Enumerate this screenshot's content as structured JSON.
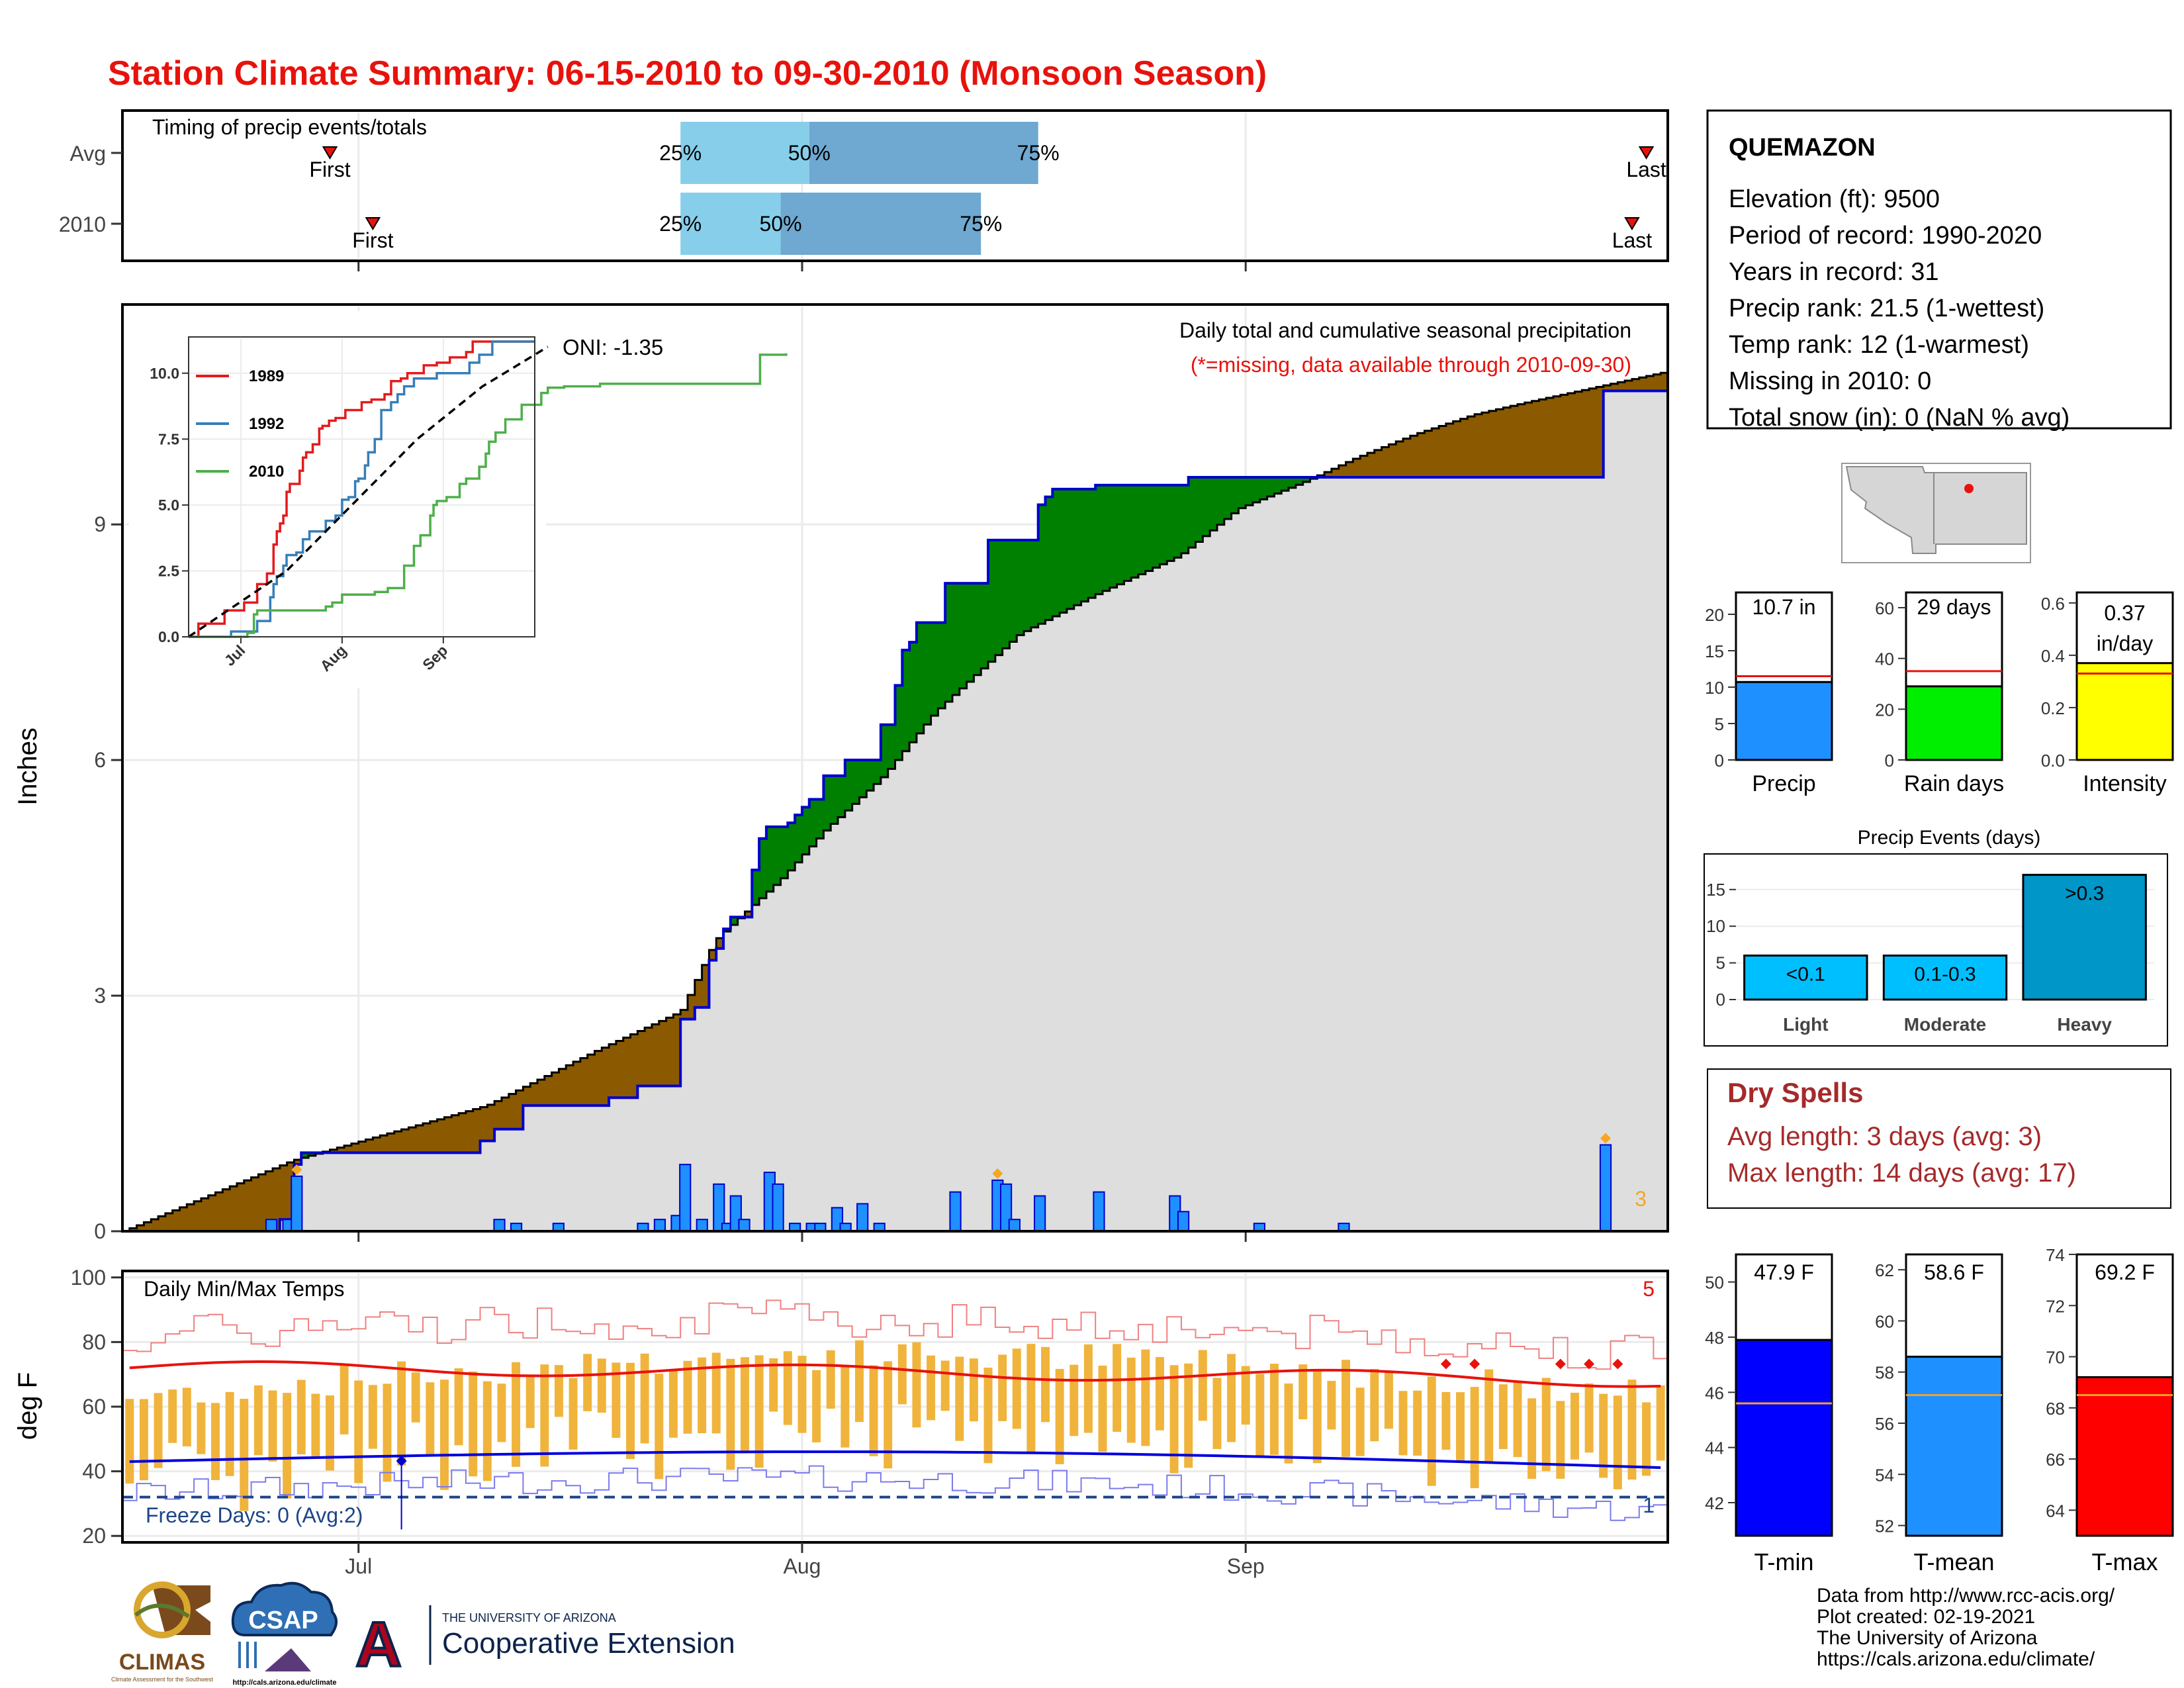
{
  "title": "Station Climate Summary: 06-15-2010 to 09-30-2010 (Monsoon Season)",
  "timing": {
    "label": "Timing of precip events/totals",
    "rows": [
      {
        "label": "Avg",
        "first_label": "First",
        "last_label": "Last",
        "first": "2010-06-29",
        "last": "2010-09-29",
        "p25": "2010-07-24",
        "p50": "2010-08-02",
        "p75": "2010-08-18"
      },
      {
        "label": "2010",
        "first_label": "First",
        "last_label": "Last",
        "first": "2010-07-02",
        "last": "2010-09-28",
        "p25": "2010-07-24",
        "p50": "2010-07-31",
        "p75": "2010-08-14"
      }
    ],
    "pct_labels": [
      "25%",
      "50%",
      "75%"
    ]
  },
  "main": {
    "ylabel": "Inches",
    "yticks": [
      0,
      3,
      6,
      9
    ],
    "ylim": [
      0,
      11.8
    ],
    "xticks": [
      "Jul",
      "Aug",
      "Sep"
    ],
    "oni": "ONI: -1.35",
    "caption": "Daily total and cumulative seasonal precipitation",
    "missing_note": "(*=missing, data available through 2010-09-30)",
    "corner_count": "3"
  },
  "chart_data": [
    {
      "type": "area",
      "name": "cumulative",
      "start_date": "2010-06-15",
      "observed_cum": [
        [
          0,
          0
        ],
        [
          17,
          0
        ],
        [
          18,
          0.15
        ],
        [
          19,
          0.15
        ],
        [
          20,
          0.85
        ],
        [
          21,
          1.0
        ],
        [
          41,
          1.0
        ],
        [
          42,
          1.15
        ],
        [
          43,
          1.15
        ],
        [
          44,
          1.3
        ],
        [
          46,
          1.3
        ],
        [
          47,
          1.6
        ],
        [
          56,
          1.6
        ],
        [
          57,
          1.7
        ],
        [
          60,
          1.7
        ],
        [
          61,
          1.85
        ],
        [
          65,
          1.85
        ],
        [
          66,
          2.7
        ],
        [
          67,
          2.85
        ],
        [
          68,
          2.85
        ],
        [
          69,
          3.45
        ],
        [
          70,
          3.6
        ],
        [
          71,
          3.85
        ],
        [
          72,
          4.0
        ],
        [
          73,
          4.0
        ],
        [
          74,
          4.6
        ],
        [
          75,
          5.0
        ],
        [
          76,
          5.15
        ],
        [
          77,
          5.15
        ],
        [
          78,
          5.2
        ],
        [
          79,
          5.3
        ],
        [
          80,
          5.4
        ],
        [
          81,
          5.5
        ],
        [
          82,
          5.5
        ],
        [
          83,
          5.8
        ],
        [
          84,
          5.8
        ],
        [
          85,
          6.0
        ],
        [
          88,
          6.0
        ],
        [
          89,
          6.45
        ],
        [
          90,
          6.45
        ],
        [
          91,
          6.95
        ],
        [
          92,
          7.4
        ],
        [
          93,
          7.5
        ],
        [
          94,
          7.75
        ],
        [
          96,
          7.75
        ],
        [
          97,
          8.25
        ],
        [
          101,
          8.25
        ],
        [
          102,
          8.8
        ],
        [
          107,
          8.8
        ],
        [
          108,
          9.25
        ],
        [
          109,
          9.35
        ],
        [
          110,
          9.45
        ],
        [
          114,
          9.45
        ],
        [
          115,
          9.5
        ],
        [
          125,
          9.5
        ],
        [
          126,
          9.6
        ],
        [
          174,
          9.6
        ],
        [
          175,
          10.7
        ],
        [
          182,
          10.7
        ],
        [
          183,
          10.75
        ]
      ],
      "avg_cum": [
        [
          0,
          0
        ],
        [
          20,
          0.9
        ],
        [
          43,
          1.6
        ],
        [
          56,
          2.3
        ],
        [
          66,
          2.8
        ],
        [
          70,
          3.7
        ],
        [
          78,
          4.5
        ],
        [
          83,
          5.1
        ],
        [
          90,
          5.8
        ],
        [
          96,
          6.6
        ],
        [
          101,
          7.1
        ],
        [
          106,
          7.6
        ],
        [
          115,
          8.1
        ],
        [
          125,
          8.6
        ],
        [
          132,
          9.2
        ],
        [
          140,
          9.55
        ],
        [
          146,
          9.85
        ],
        [
          153,
          10.15
        ],
        [
          160,
          10.4
        ],
        [
          166,
          10.55
        ],
        [
          183,
          10.95
        ]
      ],
      "daily_precip": [
        [
          17,
          0.15
        ],
        [
          19,
          0.15
        ],
        [
          20,
          0.7
        ],
        [
          44,
          0.15
        ],
        [
          46,
          0.1
        ],
        [
          51,
          0.1
        ],
        [
          61,
          0.1
        ],
        [
          63,
          0.15
        ],
        [
          65,
          0.2
        ],
        [
          66,
          0.85
        ],
        [
          68,
          0.15
        ],
        [
          70,
          0.6
        ],
        [
          71,
          0.1
        ],
        [
          72,
          0.45
        ],
        [
          73,
          0.15
        ],
        [
          76,
          0.75
        ],
        [
          77,
          0.6
        ],
        [
          79,
          0.1
        ],
        [
          81,
          0.1
        ],
        [
          82,
          0.1
        ],
        [
          84,
          0.3
        ],
        [
          85,
          0.1
        ],
        [
          87,
          0.35
        ],
        [
          89,
          0.1
        ],
        [
          98,
          0.5
        ],
        [
          103,
          0.65
        ],
        [
          104,
          0.6
        ],
        [
          105,
          0.15
        ],
        [
          108,
          0.45
        ],
        [
          115,
          0.5
        ],
        [
          124,
          0.45
        ],
        [
          125,
          0.25
        ],
        [
          134,
          0.1
        ],
        [
          144,
          0.1
        ],
        [
          175,
          1.1
        ]
      ]
    },
    {
      "type": "line",
      "name": "inset",
      "series": [
        {
          "name": "1989",
          "color": "#e41a1c",
          "points": [
            [
              0,
              0
            ],
            [
              3,
              0.5
            ],
            [
              10,
              0.5
            ],
            [
              11,
              1.0
            ],
            [
              16,
              1.0
            ],
            [
              17,
              1.3
            ],
            [
              20,
              1.3
            ],
            [
              21,
              2.0
            ],
            [
              23,
              2.0
            ],
            [
              24,
              2.4
            ],
            [
              25,
              2.4
            ],
            [
              26,
              3.5
            ],
            [
              27,
              4.0
            ],
            [
              28,
              4.3
            ],
            [
              29,
              4.6
            ],
            [
              30,
              5.5
            ],
            [
              31,
              5.8
            ],
            [
              33,
              5.8
            ],
            [
              34,
              6.3
            ],
            [
              35,
              6.8
            ],
            [
              36,
              7.0
            ],
            [
              38,
              7.3
            ],
            [
              40,
              7.9
            ],
            [
              41,
              8.0
            ],
            [
              43,
              8.2
            ],
            [
              45,
              8.3
            ],
            [
              48,
              8.6
            ],
            [
              52,
              8.6
            ],
            [
              53,
              8.9
            ],
            [
              56,
              9.0
            ],
            [
              60,
              9.2
            ],
            [
              62,
              9.7
            ],
            [
              65,
              9.8
            ],
            [
              67,
              10.0
            ],
            [
              70,
              10.0
            ],
            [
              72,
              10.3
            ],
            [
              76,
              10.4
            ],
            [
              80,
              10.6
            ],
            [
              85,
              10.8
            ],
            [
              87,
              11.2
            ],
            [
              93,
              11.2
            ],
            [
              95,
              11.2
            ],
            [
              106,
              11.2
            ]
          ]
        },
        {
          "name": "1992",
          "color": "#377eb8",
          "points": [
            [
              0,
              0
            ],
            [
              12,
              0
            ],
            [
              13,
              0.2
            ],
            [
              20,
              0.2
            ],
            [
              21,
              0.6
            ],
            [
              24,
              0.6
            ],
            [
              25,
              1.5
            ],
            [
              26,
              2.0
            ],
            [
              27,
              2.3
            ],
            [
              29,
              2.7
            ],
            [
              30,
              3.1
            ],
            [
              33,
              3.2
            ],
            [
              35,
              3.7
            ],
            [
              37,
              4.0
            ],
            [
              40,
              4.0
            ],
            [
              42,
              4.4
            ],
            [
              45,
              4.6
            ],
            [
              47,
              5.2
            ],
            [
              49,
              5.3
            ],
            [
              51,
              5.9
            ],
            [
              52,
              6.0
            ],
            [
              54,
              6.5
            ],
            [
              55,
              7.0
            ],
            [
              57,
              7.5
            ],
            [
              59,
              8.6
            ],
            [
              62,
              8.9
            ],
            [
              64,
              9.2
            ],
            [
              66,
              9.5
            ],
            [
              69,
              9.8
            ],
            [
              75,
              9.8
            ],
            [
              76,
              10.0
            ],
            [
              84,
              10.0
            ],
            [
              86,
              10.4
            ],
            [
              89,
              10.7
            ],
            [
              93,
              11.2
            ],
            [
              106,
              11.2
            ]
          ]
        },
        {
          "name": "2010",
          "color": "#4daf4a",
          "points": [
            [
              0,
              0
            ],
            [
              17,
              0
            ],
            [
              18,
              0.15
            ],
            [
              20,
              0.85
            ],
            [
              21,
              1.0
            ],
            [
              41,
              1.0
            ],
            [
              42,
              1.15
            ],
            [
              44,
              1.3
            ],
            [
              47,
              1.6
            ],
            [
              56,
              1.6
            ],
            [
              57,
              1.7
            ],
            [
              61,
              1.85
            ],
            [
              66,
              2.7
            ],
            [
              69,
              3.45
            ],
            [
              71,
              3.85
            ],
            [
              74,
              4.6
            ],
            [
              75,
              5.0
            ],
            [
              76,
              5.15
            ],
            [
              79,
              5.3
            ],
            [
              83,
              5.8
            ],
            [
              85,
              6.0
            ],
            [
              89,
              6.45
            ],
            [
              91,
              6.95
            ],
            [
              92,
              7.4
            ],
            [
              94,
              7.75
            ],
            [
              97,
              8.25
            ],
            [
              102,
              8.8
            ],
            [
              108,
              9.25
            ],
            [
              110,
              9.45
            ],
            [
              115,
              9.5
            ],
            [
              126,
              9.6
            ],
            [
              175,
              10.7
            ],
            [
              183,
              10.75
            ]
          ]
        }
      ],
      "avg_points": [
        [
          0,
          0
        ],
        [
          30,
          2.5
        ],
        [
          50,
          5
        ],
        [
          70,
          7.5
        ],
        [
          90,
          9.5
        ],
        [
          110,
          11
        ]
      ],
      "yticks": [
        0.0,
        2.5,
        5.0,
        7.5,
        10.0
      ],
      "xticks": [
        "Jul",
        "Aug",
        "Sep"
      ]
    },
    {
      "type": "line",
      "name": "temperature",
      "title": "Daily Min/Max Temps",
      "ylabel": "deg F",
      "yticks": [
        20,
        40,
        60,
        80,
        100
      ],
      "ylim": [
        18,
        102
      ],
      "freeze_line": 32,
      "freeze_text": "Freeze Days: 0 (Avg:2)",
      "corner_top": "5",
      "corner_bottom": "1",
      "xticks": [
        "Jul",
        "Aug",
        "Sep"
      ]
    }
  ],
  "station": {
    "name": "QUEMAZON",
    "lines": [
      "Elevation (ft): 9500",
      "Period of record: 1990-2020",
      "Years in record: 31",
      "Precip rank: 21.5 (1-wettest)",
      "Temp rank: 12 (1-warmest)",
      "Missing in 2010: 0",
      "Total snow (in): 0 (NaN % avg)"
    ]
  },
  "gauges": [
    {
      "label": "Precip",
      "value_label": "10.7 in",
      "value": 10.7,
      "avg": 11.5,
      "ymax": 23,
      "ticks": [
        0,
        5,
        10,
        15,
        20
      ],
      "color": "#1e90ff"
    },
    {
      "label": "Rain days",
      "value_label": "29 days",
      "value": 29,
      "avg": 35,
      "ymax": 66,
      "ticks": [
        0,
        20,
        40,
        60
      ],
      "color": "#00ee00"
    },
    {
      "label": "Intensity",
      "value_label_1": "0.37",
      "value_label_2": "in/day",
      "value": 0.37,
      "avg": 0.33,
      "ymax": 0.64,
      "ticks": [
        "0.0",
        "0.2",
        "0.4",
        "0.6"
      ],
      "color": "#ffff00"
    }
  ],
  "events": {
    "title": "Precip Events (days)",
    "bars": [
      {
        "category": "Light",
        "label": "<0.1",
        "value": 6
      },
      {
        "category": "Moderate",
        "label": "0.1-0.3",
        "value": 6
      },
      {
        "category": "Heavy",
        "label": ">0.3",
        "value": 17
      }
    ],
    "yticks": [
      0,
      5,
      10,
      15
    ],
    "ymax": 18.5
  },
  "dry_spells": {
    "title": "Dry Spells",
    "avg": "Avg length: 3 days (avg: 3)",
    "max": "Max length: 14 days (avg: 17)"
  },
  "temp_gauges": [
    {
      "label": "T-min",
      "value_label": "47.9 F",
      "value": 47.9,
      "avg": 45.6,
      "ymin": 40.8,
      "ymax": 51,
      "ticks": [
        42,
        44,
        46,
        48,
        50
      ],
      "color": "#0000ff"
    },
    {
      "label": "T-mean",
      "value_label": "58.6 F",
      "value": 58.6,
      "avg": 57.1,
      "ymin": 51.6,
      "ymax": 62.6,
      "ticks": [
        52,
        54,
        56,
        58,
        60,
        62
      ],
      "color": "#1e90ff"
    },
    {
      "label": "T-max",
      "value_label": "69.2 F",
      "value": 69.2,
      "avg": 68.5,
      "ymin": 63,
      "ymax": 74,
      "ticks": [
        64,
        66,
        68,
        70,
        72,
        74
      ],
      "color": "#ff0000"
    }
  ],
  "footer": {
    "lines": [
      "Data from http://www.rcc-acis.org/",
      "Plot created: 02-19-2021",
      "The University of Arizona",
      "https://cals.arizona.edu/climate/"
    ],
    "logos": {
      "climas": "CLIMAS",
      "climas_sub": "Climate Assessment for the Southwest",
      "csap": "CSAP",
      "csap_url": "http://cals.arizona.edu/climate",
      "ua_small": "THE UNIVERSITY OF ARIZONA",
      "ua_big": "Cooperative Extension",
      "ua_letter": "A"
    }
  },
  "colors": {
    "title": "#e8120c",
    "above_avg": "#008000",
    "below_avg": "#8b5a00",
    "observed_line": "#0000cd",
    "daily_bar": "#1e90ff",
    "area": "#dedede",
    "dry_spells": "#a52a2a"
  }
}
